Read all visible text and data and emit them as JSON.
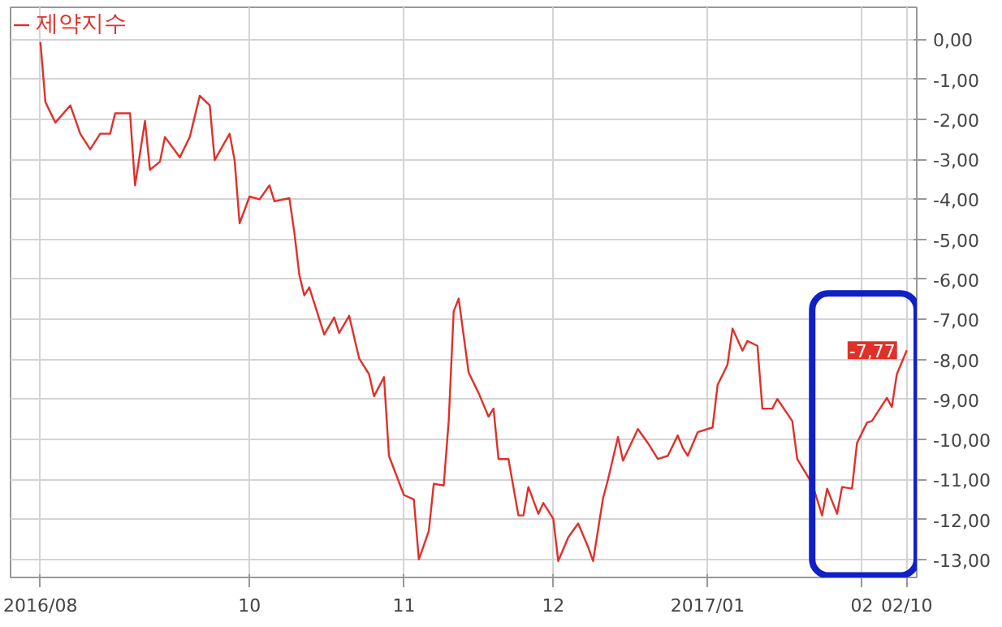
{
  "chart_data": {
    "type": "line",
    "x": [
      "2016-08-20",
      "2016-08-21",
      "2016-08-23",
      "2016-08-26",
      "2016-08-28",
      "2016-08-30",
      "2016-09-01",
      "2016-09-03",
      "2016-09-04",
      "2016-09-07",
      "2016-09-08",
      "2016-09-10",
      "2016-09-11",
      "2016-09-13",
      "2016-09-14",
      "2016-09-17",
      "2016-09-19",
      "2016-09-21",
      "2016-09-23",
      "2016-09-24",
      "2016-09-27",
      "2016-09-28",
      "2016-09-29",
      "2016-10-01",
      "2016-10-03",
      "2016-10-05",
      "2016-10-06",
      "2016-10-09",
      "2016-10-10",
      "2016-10-11",
      "2016-10-12",
      "2016-10-13",
      "2016-10-16",
      "2016-10-18",
      "2016-10-19",
      "2016-10-21",
      "2016-10-23",
      "2016-10-25",
      "2016-10-26",
      "2016-10-28",
      "2016-10-29",
      "2016-11-01",
      "2016-11-03",
      "2016-11-04",
      "2016-11-06",
      "2016-11-07",
      "2016-11-09",
      "2016-11-10",
      "2016-11-11",
      "2016-11-12",
      "2016-11-14",
      "2016-11-16",
      "2016-11-18",
      "2016-11-19",
      "2016-11-20",
      "2016-11-22",
      "2016-11-24",
      "2016-11-25",
      "2016-11-26",
      "2016-11-28",
      "2016-11-29",
      "2016-12-01",
      "2016-12-02",
      "2016-12-04",
      "2016-12-06",
      "2016-12-08",
      "2016-12-09",
      "2016-12-11",
      "2016-12-12",
      "2016-12-14",
      "2016-12-15",
      "2016-12-18",
      "2016-12-20",
      "2016-12-22",
      "2016-12-24",
      "2016-12-26",
      "2016-12-27",
      "2016-12-28",
      "2016-12-30",
      "2017-01-02",
      "2017-01-03",
      "2017-01-05",
      "2017-01-06",
      "2017-01-08",
      "2017-01-09",
      "2017-01-11",
      "2017-01-12",
      "2017-01-14",
      "2017-01-15",
      "2017-01-18",
      "2017-01-19",
      "2017-01-22",
      "2017-01-24",
      "2017-01-25",
      "2017-01-27",
      "2017-01-28",
      "2017-01-30",
      "2017-01-31",
      "2017-02-02",
      "2017-02-03",
      "2017-02-06",
      "2017-02-07",
      "2017-02-08",
      "2017-02-10"
    ],
    "series": [
      {
        "name": "제약지수",
        "color": "#e0302a",
        "values": [
          -0.07,
          -1.57,
          -2.08,
          -1.65,
          -2.36,
          -2.75,
          -2.36,
          -2.36,
          -1.85,
          -1.85,
          -3.65,
          -2.04,
          -3.26,
          -3.06,
          -2.44,
          -2.95,
          -2.44,
          -1.41,
          -1.65,
          -3.02,
          -2.36,
          -3.02,
          -4.6,
          -3.93,
          -4.0,
          -3.65,
          -4.05,
          -3.97,
          -4.83,
          -5.89,
          -6.4,
          -6.2,
          -7.38,
          -6.95,
          -7.34,
          -6.91,
          -7.97,
          -8.37,
          -8.92,
          -8.44,
          -10.41,
          -11.39,
          -11.5,
          -13.0,
          -12.29,
          -11.11,
          -11.15,
          -9.54,
          -6.8,
          -6.48,
          -8.33,
          -8.84,
          -9.43,
          -9.23,
          -10.49,
          -10.49,
          -11.9,
          -11.9,
          -11.19,
          -11.86,
          -11.59,
          -11.98,
          -13.04,
          -12.45,
          -12.1,
          -12.69,
          -13.04,
          -11.47,
          -11.0,
          -9.94,
          -10.53,
          -9.74,
          -10.09,
          -10.49,
          -10.41,
          -9.9,
          -10.21,
          -10.41,
          -9.82,
          -9.7,
          -8.64,
          -8.13,
          -7.23,
          -7.78,
          -7.54,
          -7.66,
          -9.23,
          -9.23,
          -8.99,
          -9.54,
          -10.49,
          -11.11,
          -11.9,
          -11.23,
          -11.86,
          -11.19,
          -11.23,
          -10.09,
          -9.58,
          -9.54,
          -8.96,
          -9.19,
          -8.37,
          -7.77
        ]
      }
    ],
    "xlim": [
      "2016-08-14",
      "2017-02-12"
    ],
    "xticks": [
      {
        "value": "2016-08-20",
        "label": "2016/08"
      },
      {
        "value": "2016-10-01",
        "label": "10"
      },
      {
        "value": "2016-11-01",
        "label": "11"
      },
      {
        "value": "2016-12-01",
        "label": "12"
      },
      {
        "value": "2017-01-01",
        "label": "2017/01"
      },
      {
        "value": "2017-02-01",
        "label": "02"
      },
      {
        "value": "2017-02-10",
        "label": "02/10"
      }
    ],
    "ylim": [
      -13.45,
      0.8
    ],
    "yticks": [
      {
        "value": 0,
        "label": "0,00"
      },
      {
        "value": -1,
        "label": "-1,00"
      },
      {
        "value": -2,
        "label": "-2,00"
      },
      {
        "value": -3,
        "label": "-3,00"
      },
      {
        "value": -4,
        "label": "-4,00"
      },
      {
        "value": -5,
        "label": "-5,00"
      },
      {
        "value": -6,
        "label": "-6,00"
      },
      {
        "value": -7,
        "label": "-7,00"
      },
      {
        "value": -8,
        "label": "-8,00"
      },
      {
        "value": -9,
        "label": "-9,00"
      },
      {
        "value": -10,
        "label": "-10,00"
      },
      {
        "value": -11,
        "label": "-11,00"
      },
      {
        "value": -12,
        "label": "-12,00"
      },
      {
        "value": -13,
        "label": "-13,00"
      }
    ],
    "annotations": [
      {
        "text": "-7,77",
        "x": "2017-02-10",
        "y": -7.77
      }
    ],
    "grid": true,
    "legend": "top left",
    "marker": "none",
    "line_style": "solid"
  }
}
